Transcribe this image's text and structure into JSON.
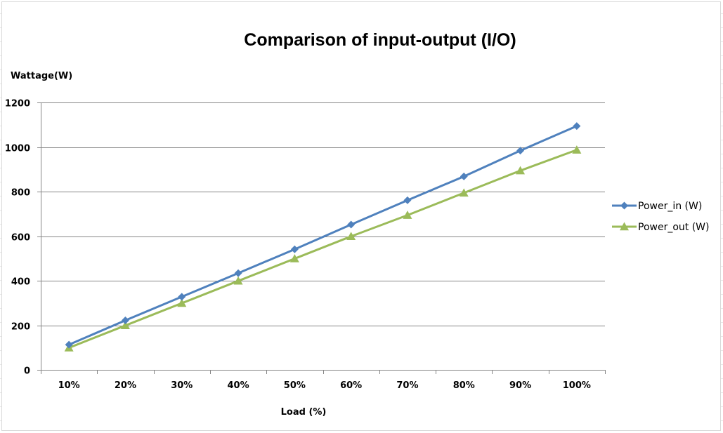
{
  "chart_data": {
    "type": "line",
    "title": "Comparison of input-output (I/O)",
    "xlabel": "Load (%)",
    "ylabel": "Wattage(W)",
    "categories": [
      "10%",
      "20%",
      "30%",
      "40%",
      "50%",
      "60%",
      "70%",
      "80%",
      "90%",
      "100%"
    ],
    "ylim": [
      0,
      1200
    ],
    "yticks": [
      "0",
      "200",
      "400",
      "600",
      "800",
      "1000",
      "1200"
    ],
    "ytick_values": [
      0,
      200,
      400,
      600,
      800,
      1000,
      1200
    ],
    "grid": "horizontal",
    "legend_position": "right",
    "series": [
      {
        "name": "Power_in (W)",
        "values": [
          113,
          222,
          328,
          434,
          541,
          652,
          761,
          868,
          984,
          1094
        ],
        "color": "#4F81BD",
        "marker": "diamond"
      },
      {
        "name": "Power_out (W)",
        "values": [
          99,
          199,
          299,
          399,
          499,
          599,
          694,
          794,
          894,
          987
        ],
        "color": "#9BBB59",
        "marker": "triangle"
      }
    ]
  }
}
